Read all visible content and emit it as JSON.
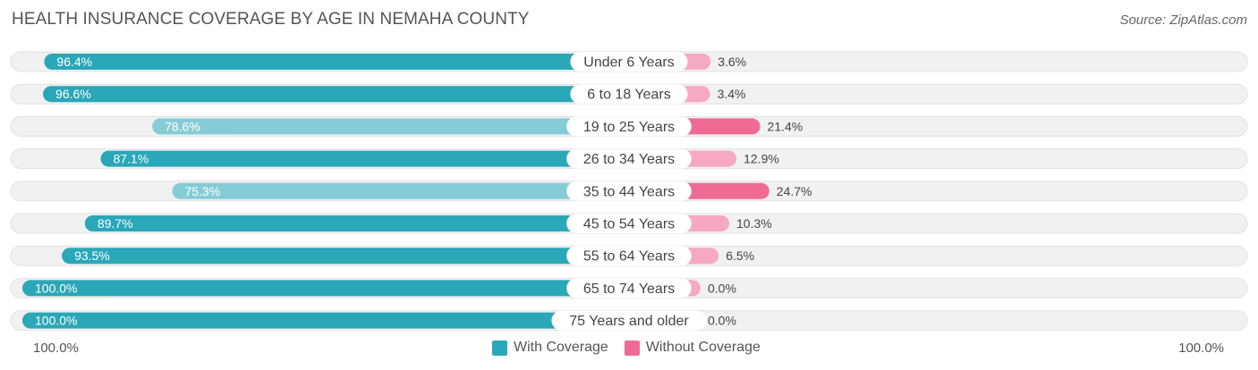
{
  "title": "HEALTH INSURANCE COVERAGE BY AGE IN NEMAHA COUNTY",
  "source": "Source: ZipAtlas.com",
  "axis": {
    "left_label": "100.0%",
    "right_label": "100.0%"
  },
  "legend": {
    "with_label": "With Coverage",
    "without_label": "Without Coverage"
  },
  "colors": {
    "with_strong": "#2aa7b8",
    "with_light": "#86ccd6",
    "without_strong": "#f06a96",
    "without_light": "#f7a8c2",
    "track": "#f1f1f1"
  },
  "chart_data": {
    "type": "bar",
    "orientation": "horizontal-diverging",
    "title": "HEALTH INSURANCE COVERAGE BY AGE IN NEMAHA COUNTY",
    "categories": [
      "Under 6 Years",
      "6 to 18 Years",
      "19 to 25 Years",
      "26 to 34 Years",
      "35 to 44 Years",
      "45 to 54 Years",
      "55 to 64 Years",
      "65 to 74 Years",
      "75 Years and older"
    ],
    "series": [
      {
        "name": "With Coverage",
        "values": [
          96.4,
          96.6,
          78.6,
          87.1,
          75.3,
          89.7,
          93.5,
          100.0,
          100.0
        ],
        "labels": [
          "96.4%",
          "96.6%",
          "78.6%",
          "87.1%",
          "75.3%",
          "89.7%",
          "93.5%",
          "100.0%",
          "100.0%"
        ]
      },
      {
        "name": "Without Coverage",
        "values": [
          3.6,
          3.4,
          21.4,
          12.9,
          24.7,
          10.3,
          6.5,
          0.0,
          0.0
        ],
        "labels": [
          "3.6%",
          "3.4%",
          "21.4%",
          "12.9%",
          "24.7%",
          "10.3%",
          "6.5%",
          "0.0%",
          "0.0%"
        ]
      }
    ],
    "xlim": [
      -100,
      100
    ]
  }
}
